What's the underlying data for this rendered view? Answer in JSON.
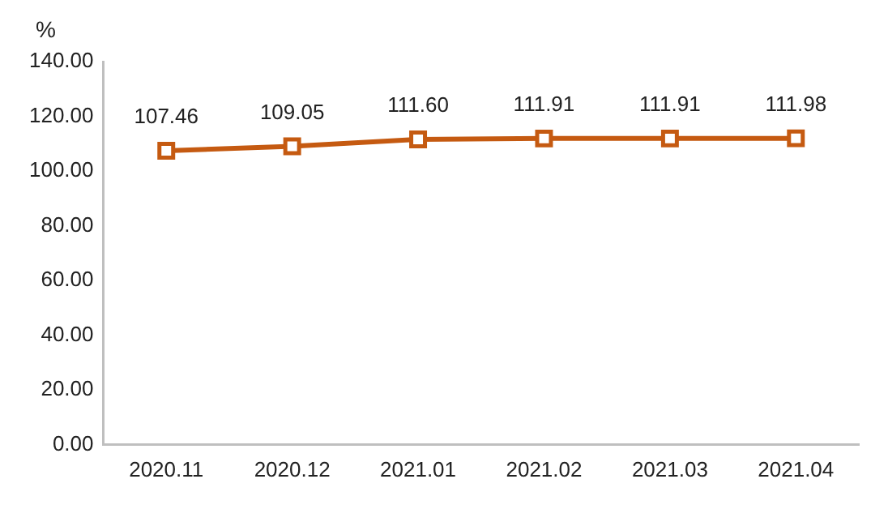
{
  "chart_data": {
    "type": "line",
    "ylabel": "%",
    "categories": [
      "2020.11",
      "2020.12",
      "2021.01",
      "2021.02",
      "2021.03",
      "2021.04"
    ],
    "series": [
      {
        "color": "#c55a11",
        "values": [
          107.46,
          109.05,
          111.6,
          111.91,
          111.91,
          111.98
        ],
        "value_labels": [
          "107.46",
          "109.05",
          "111.60",
          "111.91",
          "111.91",
          "111.98"
        ]
      }
    ],
    "ylim": [
      0,
      140
    ],
    "yticks": [
      {
        "value": 0,
        "label": "0.00"
      },
      {
        "value": 20,
        "label": "20.00"
      },
      {
        "value": 40,
        "label": "40.00"
      },
      {
        "value": 60,
        "label": "60.00"
      },
      {
        "value": 80,
        "label": "80.00"
      },
      {
        "value": 100,
        "label": "100.00"
      },
      {
        "value": 120,
        "label": "120.00"
      },
      {
        "value": 140,
        "label": "140.00"
      }
    ],
    "grid": false,
    "legend": false,
    "marker": "square",
    "line_style": "solid"
  }
}
